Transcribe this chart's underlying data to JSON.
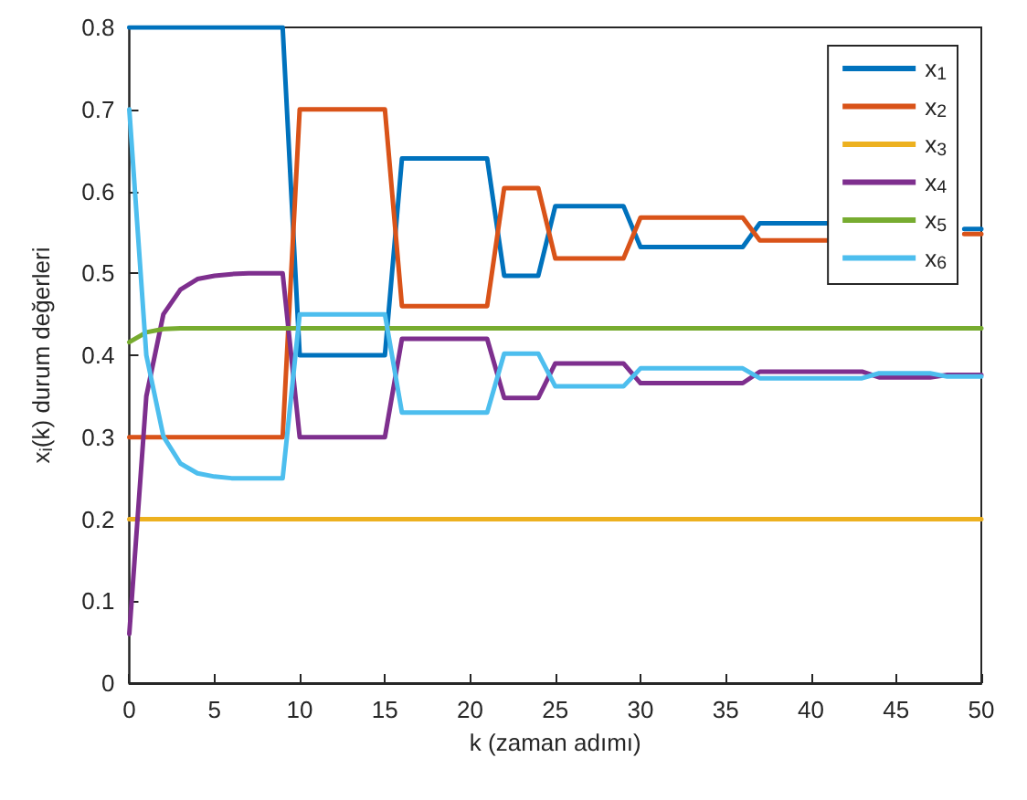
{
  "chart_data": {
    "type": "line",
    "xlabel": "k (zaman adımı)",
    "ylabel": "x$_{i}$(k) durum değerleri",
    "x": [
      0,
      1,
      2,
      3,
      4,
      5,
      6,
      7,
      8,
      9,
      10,
      11,
      12,
      13,
      14,
      15,
      16,
      17,
      18,
      19,
      20,
      21,
      22,
      23,
      24,
      25,
      26,
      27,
      28,
      29,
      30,
      31,
      32,
      33,
      34,
      35,
      36,
      37,
      38,
      39,
      40,
      41,
      42,
      43,
      44,
      45,
      46,
      47,
      48,
      49,
      50
    ],
    "series": [
      {
        "name": "x$_{1}$",
        "color": "#0072bd",
        "values": [
          0.8,
          0.8,
          0.8,
          0.8,
          0.8,
          0.8,
          0.8,
          0.8,
          0.8,
          0.8,
          0.4,
          0.4,
          0.4,
          0.4,
          0.4,
          0.4,
          0.64,
          0.64,
          0.64,
          0.64,
          0.64,
          0.64,
          0.497,
          0.497,
          0.497,
          0.582,
          0.582,
          0.582,
          0.582,
          0.582,
          0.532,
          0.532,
          0.532,
          0.532,
          0.532,
          0.532,
          0.532,
          0.561,
          0.561,
          0.561,
          0.561,
          0.561,
          null,
          null,
          null,
          null,
          null,
          null,
          null,
          0.554,
          0.554
        ]
      },
      {
        "name": "x$_{2}$",
        "color": "#d95319",
        "values": [
          0.3,
          0.3,
          0.3,
          0.3,
          0.3,
          0.3,
          0.3,
          0.3,
          0.3,
          0.3,
          0.7,
          0.7,
          0.7,
          0.7,
          0.7,
          0.7,
          0.46,
          0.46,
          0.46,
          0.46,
          0.46,
          0.46,
          0.604,
          0.604,
          0.604,
          0.518,
          0.518,
          0.518,
          0.518,
          0.518,
          0.568,
          0.568,
          0.568,
          0.568,
          0.568,
          0.568,
          0.568,
          0.54,
          0.54,
          0.54,
          0.54,
          0.54,
          null,
          null,
          null,
          null,
          null,
          null,
          null,
          0.548,
          0.548
        ]
      },
      {
        "name": "x$_{3}$",
        "color": "#edb120",
        "values": [
          0.2,
          0.2,
          0.2,
          0.2,
          0.2,
          0.2,
          0.2,
          0.2,
          0.2,
          0.2,
          0.2,
          0.2,
          0.2,
          0.2,
          0.2,
          0.2,
          0.2,
          0.2,
          0.2,
          0.2,
          0.2,
          0.2,
          0.2,
          0.2,
          0.2,
          0.2,
          0.2,
          0.2,
          0.2,
          0.2,
          0.2,
          0.2,
          0.2,
          0.2,
          0.2,
          0.2,
          0.2,
          0.2,
          0.2,
          0.2,
          0.2,
          0.2,
          0.2,
          0.2,
          0.2,
          0.2,
          0.2,
          0.2,
          0.2,
          0.2,
          0.2
        ]
      },
      {
        "name": "x$_{4}$",
        "color": "#7e2f8e",
        "values": [
          0.06,
          0.35,
          0.45,
          0.48,
          0.493,
          0.497,
          0.499,
          0.5,
          0.5,
          0.5,
          0.3,
          0.3,
          0.3,
          0.3,
          0.3,
          0.3,
          0.42,
          0.42,
          0.42,
          0.42,
          0.42,
          0.42,
          0.348,
          0.348,
          0.348,
          0.39,
          0.39,
          0.39,
          0.39,
          0.39,
          0.366,
          0.366,
          0.366,
          0.366,
          0.366,
          0.366,
          0.366,
          0.38,
          0.38,
          0.38,
          0.38,
          0.38,
          0.38,
          0.38,
          0.373,
          0.373,
          0.373,
          0.373,
          0.376,
          0.376,
          0.376
        ]
      },
      {
        "name": "x$_{5}$",
        "color": "#77ac30",
        "values": [
          0.416,
          0.428,
          0.432,
          0.433,
          0.433,
          0.433,
          0.433,
          0.433,
          0.433,
          0.433,
          0.433,
          0.433,
          0.433,
          0.433,
          0.433,
          0.433,
          0.433,
          0.433,
          0.433,
          0.433,
          0.433,
          0.433,
          0.433,
          0.433,
          0.433,
          0.433,
          0.433,
          0.433,
          0.433,
          0.433,
          0.433,
          0.433,
          0.433,
          0.433,
          0.433,
          0.433,
          0.433,
          0.433,
          0.433,
          0.433,
          0.433,
          0.433,
          0.433,
          0.433,
          0.433,
          0.433,
          0.433,
          0.433,
          0.433,
          0.433,
          0.433
        ]
      },
      {
        "name": "x$_{6}$",
        "color": "#4dbeee",
        "values": [
          0.7,
          0.4,
          0.301,
          0.268,
          0.256,
          0.252,
          0.25,
          0.25,
          0.25,
          0.25,
          0.45,
          0.45,
          0.45,
          0.45,
          0.45,
          0.45,
          0.33,
          0.33,
          0.33,
          0.33,
          0.33,
          0.33,
          0.402,
          0.402,
          0.402,
          0.362,
          0.362,
          0.362,
          0.362,
          0.362,
          0.384,
          0.384,
          0.384,
          0.384,
          0.384,
          0.384,
          0.384,
          0.372,
          0.372,
          0.372,
          0.372,
          0.372,
          0.372,
          0.372,
          0.378,
          0.378,
          0.378,
          0.378,
          0.374,
          0.374,
          0.374
        ]
      }
    ],
    "xlim": [
      0,
      50
    ],
    "xticks": [
      0,
      5,
      10,
      15,
      20,
      25,
      30,
      35,
      40,
      45,
      50
    ],
    "ylim": [
      0,
      0.8
    ],
    "yticks": [
      0,
      0.1,
      0.2,
      0.3,
      0.4,
      0.5,
      0.6,
      0.7,
      0.8
    ],
    "grid": false,
    "legend": "top right",
    "marker": "none",
    "line_style": "solid"
  }
}
